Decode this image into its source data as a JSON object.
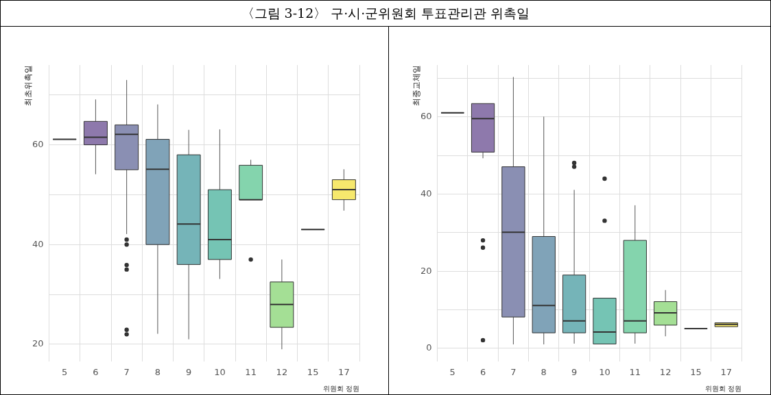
{
  "chart_data": [
    {
      "type": "box",
      "title": "〈그림 3-12〉 구·시·군위원회 투표관리관 위촉일",
      "ylabel": "최초위촉일",
      "xlabel": "위원회 정원",
      "categories": [
        "5",
        "6",
        "7",
        "8",
        "9",
        "10",
        "11",
        "12",
        "15",
        "17"
      ],
      "colors": [
        "#333333",
        "#8e79ac",
        "#8a8fb3",
        "#80a3b8",
        "#75b4b8",
        "#75c4b4",
        "#84d4ad",
        "#a4df95",
        "#333333",
        "#f6e86d"
      ],
      "boxes": [
        {
          "low": 61.1,
          "q1": 61.1,
          "median": 61.1,
          "q3": 61.1,
          "high": 61.1
        },
        {
          "low": 54.1,
          "q1": 60,
          "median": 61.5,
          "q3": 64.7,
          "high": 69.1
        },
        {
          "low": 42.1,
          "q1": 55,
          "median": 62.1,
          "q3": 64,
          "high": 73,
          "outliers": [
            41,
            40,
            35.9,
            35,
            22.9,
            22
          ]
        },
        {
          "low": 22.1,
          "q1": 40,
          "median": 55.1,
          "q3": 61.1,
          "high": 68.1
        },
        {
          "low": 21,
          "q1": 36,
          "median": 44.1,
          "q3": 58,
          "high": 63
        },
        {
          "low": 33.1,
          "q1": 37,
          "median": 41,
          "q3": 51,
          "high": 63.1
        },
        {
          "low": 49,
          "q1": 49,
          "median": 49,
          "q3": 55.9,
          "high": 57,
          "outliers": [
            37
          ]
        },
        {
          "low": 19,
          "q1": 23.4,
          "median": 28,
          "q3": 32.5,
          "high": 37
        },
        {
          "low": 43,
          "q1": 43,
          "median": 43,
          "q3": 43,
          "high": 43
        },
        {
          "low": 46.8,
          "q1": 49,
          "median": 51,
          "q3": 53,
          "high": 55.1
        }
      ],
      "ylim": [
        16.5,
        76
      ],
      "yticks": [
        20,
        {
          "value": 30,
          "label": null
        },
        40,
        {
          "value": 50,
          "label": null
        },
        60,
        {
          "value": 70,
          "label": null
        }
      ],
      "grid": true
    },
    {
      "type": "box",
      "ylabel": "최종교체일",
      "xlabel": "위원회 정원",
      "categories": [
        "5",
        "6",
        "7",
        "8",
        "9",
        "10",
        "11",
        "12",
        "15",
        "17"
      ],
      "colors": [
        "#333333",
        "#8e79ac",
        "#8a8fb3",
        "#80a3b8",
        "#75b4b8",
        "#75c4b4",
        "#84d4ad",
        "#a4df95",
        "#333333",
        "#f6e86d"
      ],
      "boxes": [
        {
          "low": 61.1,
          "q1": 61.1,
          "median": 61.1,
          "q3": 61.1,
          "high": 61.1
        },
        {
          "low": 49.3,
          "q1": 50.9,
          "median": 59.6,
          "q3": 63.5,
          "high": 63.5,
          "outliers": [
            28,
            26.1,
            2.1
          ]
        },
        {
          "low": 1,
          "q1": 8.1,
          "median": 30.1,
          "q3": 47.1,
          "high": 70.4
        },
        {
          "low": 1,
          "q1": 4,
          "median": 11.1,
          "q3": 29,
          "high": 60.1
        },
        {
          "low": 1.2,
          "q1": 4,
          "median": 7.1,
          "q3": 19,
          "high": 41.1,
          "outliers": [
            48.1,
            47.1
          ]
        },
        {
          "low": 1.1,
          "q1": 1.1,
          "median": 4.2,
          "q3": 13,
          "high": 13,
          "outliers": [
            44,
            33.1
          ]
        },
        {
          "low": 1.2,
          "q1": 4,
          "median": 7.1,
          "q3": 28,
          "high": 37.1
        },
        {
          "low": 3.1,
          "q1": 6,
          "median": 9.2,
          "q3": 12.1,
          "high": 15.1
        },
        {
          "low": 5.1,
          "q1": 5.1,
          "median": 5.1,
          "q3": 5.1,
          "high": 5.1
        },
        {
          "low": 5.6,
          "q1": 5.6,
          "median": 6.2,
          "q3": 6.6,
          "high": 6.6
        }
      ],
      "ylim": [
        -3.5,
        73.5
      ],
      "yticks": [
        0,
        {
          "value": 10,
          "label": null
        },
        20,
        {
          "value": 30,
          "label": null
        },
        40,
        {
          "value": 50,
          "label": null
        },
        60,
        {
          "value": 70,
          "label": null
        }
      ],
      "grid": true
    }
  ]
}
